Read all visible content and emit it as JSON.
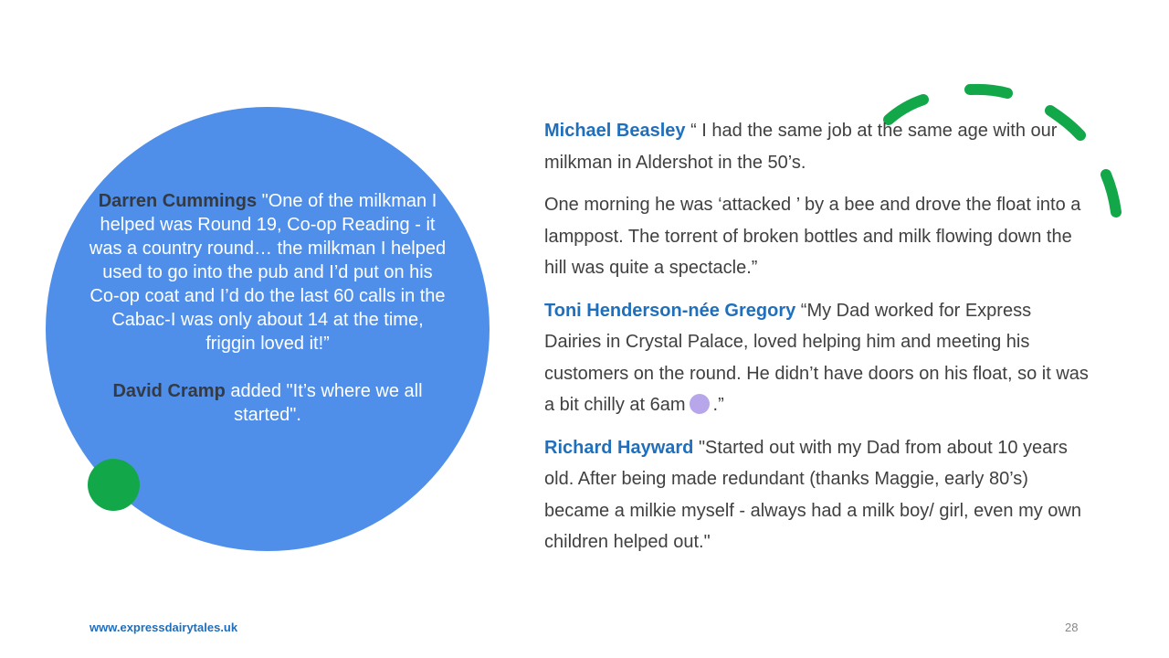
{
  "circle_quote": {
    "name1": "Darren Cummings",
    "text1": " \"One of the milkman I helped was Round 19, Co-op Reading - it was a country round… the milkman I helped used to go into the pub and I’d put on his Co-op coat and I’d do the last 60 calls in the Cabac-I was only about 14 at the time, friggin loved it!”",
    "name2": "David Cramp",
    "text2": " added \"It’s where we all started\"."
  },
  "quotes": [
    {
      "name": "Michael Beasley",
      "text": " “ I had the same job at the same age with our milkman in Aldershot in the 50’s."
    },
    {
      "name": "",
      "text": "One morning he was ‘attacked ’ by a bee and drove the float into a lamppost. The torrent of broken bottles and milk flowing down the hill was quite a spectacle.”"
    },
    {
      "name": "Toni Henderson-née Gregory",
      "text": " “My Dad worked for Express Dairies in Crystal Palace, loved helping him and meeting his customers on the round. He didn’t have doors on his float, so it was a bit chilly at 6am",
      "emoji": "cold-face-emoji",
      "tail": ".”"
    },
    {
      "name": "Richard Hayward",
      "text": " \"Started out with my Dad from about 10 years old. After being made redundant (thanks Maggie, early 80’s) became a milkie myself - always had a milk boy/ girl, even my own children helped out.\""
    }
  ],
  "footer": {
    "website": "www.expressdairytales.uk",
    "page_number": "28"
  },
  "colors": {
    "circle": "#4f8fea",
    "accent_green": "#12a84a",
    "name_blue": "#1f6fbd"
  }
}
